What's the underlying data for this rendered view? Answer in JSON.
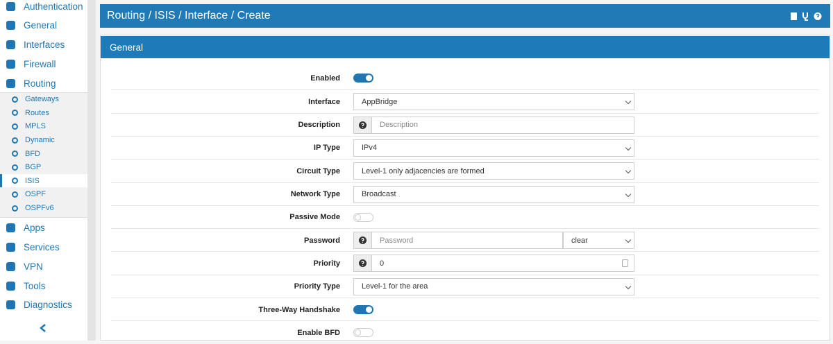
{
  "sidebar": {
    "items": [
      {
        "label": "Authentication"
      },
      {
        "label": "General"
      },
      {
        "label": "Interfaces"
      },
      {
        "label": "Firewall"
      },
      {
        "label": "Routing",
        "submenu": [
          {
            "label": "Gateways"
          },
          {
            "label": "Routes"
          },
          {
            "label": "MPLS"
          },
          {
            "label": "Dynamic"
          },
          {
            "label": "BFD"
          },
          {
            "label": "BGP"
          },
          {
            "label": "ISIS",
            "active": true
          },
          {
            "label": "OSPF"
          },
          {
            "label": "OSPFv6"
          }
        ]
      },
      {
        "label": "Apps"
      },
      {
        "label": "Services"
      },
      {
        "label": "VPN"
      },
      {
        "label": "Tools"
      },
      {
        "label": "Diagnostics"
      }
    ]
  },
  "header": {
    "title": "Routing / ISIS / Interface / Create"
  },
  "panel": {
    "title": "General",
    "rows": [
      {
        "label": "Enabled",
        "control": "toggle",
        "checked": true
      },
      {
        "label": "Interface",
        "control": "select",
        "value": "AppBridge"
      },
      {
        "label": "Description",
        "control": "input",
        "help": true,
        "placeholder": "Description"
      },
      {
        "label": "IP Type",
        "control": "select",
        "value": "IPv4"
      },
      {
        "label": "Circuit Type",
        "control": "select",
        "value": "Level-1 only adjacencies are formed"
      },
      {
        "label": "Network Type",
        "control": "select",
        "value": "Broadcast"
      },
      {
        "label": "Passive Mode",
        "control": "toggle",
        "checked": false
      },
      {
        "label": "Password",
        "control": "input",
        "help": true,
        "placeholder": "Password",
        "select": "clear"
      },
      {
        "label": "Priority",
        "control": "number",
        "help": true,
        "value": "0"
      },
      {
        "label": "Priority Type",
        "control": "select",
        "value": "Level-1 for the area"
      },
      {
        "label": "Three-Way Handshake",
        "control": "toggle",
        "checked": true
      },
      {
        "label": "Enable BFD",
        "control": "toggle",
        "checked": false
      }
    ]
  }
}
